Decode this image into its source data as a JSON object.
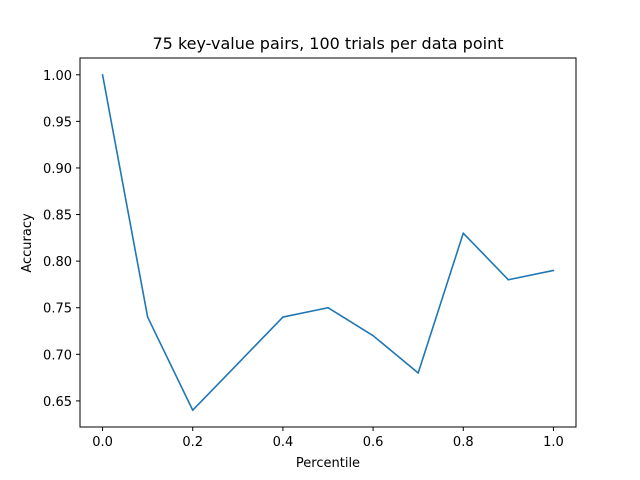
{
  "chart_data": {
    "type": "line",
    "title": "75 key-value pairs, 100 trials per data point",
    "xlabel": "Percentile",
    "ylabel": "Accuracy",
    "xlim": [
      -0.05,
      1.05
    ],
    "ylim": [
      0.622,
      1.018
    ],
    "x_ticks": [
      0.0,
      0.2,
      0.4,
      0.6,
      0.8,
      1.0
    ],
    "x_tick_labels": [
      "0.0",
      "0.2",
      "0.4",
      "0.6",
      "0.8",
      "1.0"
    ],
    "y_ticks": [
      0.65,
      0.7,
      0.75,
      0.8,
      0.85,
      0.9,
      0.95,
      1.0
    ],
    "y_tick_labels": [
      "0.65",
      "0.70",
      "0.75",
      "0.80",
      "0.85",
      "0.90",
      "0.95",
      "1.00"
    ],
    "grid": false,
    "legend": "none",
    "series": [
      {
        "color": "#1f77b4",
        "x": [
          0.0,
          0.1,
          0.2,
          0.3,
          0.4,
          0.5,
          0.6,
          0.7,
          0.8,
          0.9,
          1.0
        ],
        "y": [
          1.0,
          0.74,
          0.64,
          0.69,
          0.74,
          0.75,
          0.72,
          0.68,
          0.83,
          0.78,
          0.79
        ]
      }
    ]
  }
}
